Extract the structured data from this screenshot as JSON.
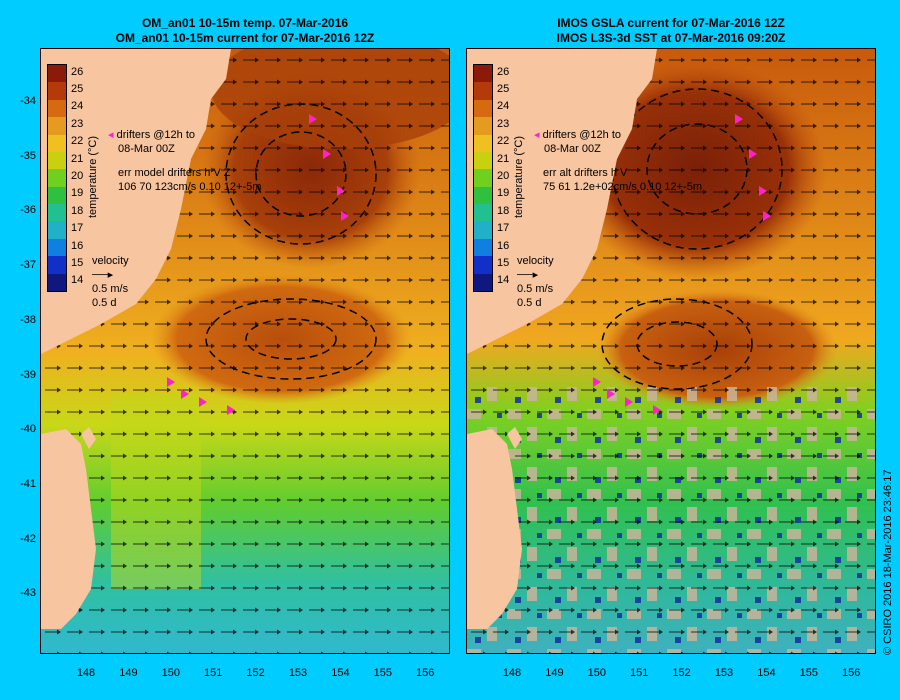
{
  "left_panel": {
    "title_line1": "OM_an01 10-15m temp. 07-Mar-2016",
    "title_line2": "OM_an01 10-15m current for 07-Mar-2016 12Z",
    "drifters_line1": "drifters @12h to",
    "drifters_line2": "08-Mar 00Z",
    "err_line1": "err model drifters h V Z",
    "err_line2": "106 70 123cm/s 0.10 12+-5m",
    "velocity_label": "velocity",
    "velocity_scale": "0.5 m/s",
    "velocity_days": "0.5 d"
  },
  "right_panel": {
    "title_line1": "IMOS GSLA current for 07-Mar-2016 12Z",
    "title_line2": "IMOS L3S-3d SST at 07-Mar-2016 09:20Z",
    "drifters_line1": "drifters @12h to",
    "drifters_line2": "08-Mar 00Z",
    "err_line1": "err alt drifters h V",
    "err_line2": "75 61 1.2e+02cm/s 0.10 12+-5m",
    "velocity_label": "velocity",
    "velocity_scale": "0.5 m/s",
    "velocity_days": "0.5 d"
  },
  "colorbar": {
    "title": "temperature (°C)",
    "labels": [
      "26",
      "25",
      "24",
      "23",
      "22",
      "21",
      "20",
      "19",
      "18",
      "17",
      "16",
      "15",
      "14"
    ],
    "colors": [
      "#8b1a0a",
      "#b43a0a",
      "#d56a10",
      "#e59a20",
      "#f0c020",
      "#c8d010",
      "#70d020",
      "#30c040",
      "#20c090",
      "#20b0c8",
      "#1080e0",
      "#1030c8",
      "#101880"
    ]
  },
  "axes": {
    "latitudes": [
      "-34",
      "-35",
      "-36",
      "-37",
      "-38",
      "-39",
      "-40",
      "-41",
      "-42",
      "-43"
    ],
    "longitudes": [
      "148",
      "149",
      "150",
      "151",
      "152",
      "153",
      "154",
      "155",
      "156"
    ]
  },
  "copyright": "© CSIRO 2016   18-Mar-2016 23:46:17",
  "colors": {
    "background": "#00ccff",
    "land": "#f7c5a0",
    "drifter": "#ff22cc"
  }
}
